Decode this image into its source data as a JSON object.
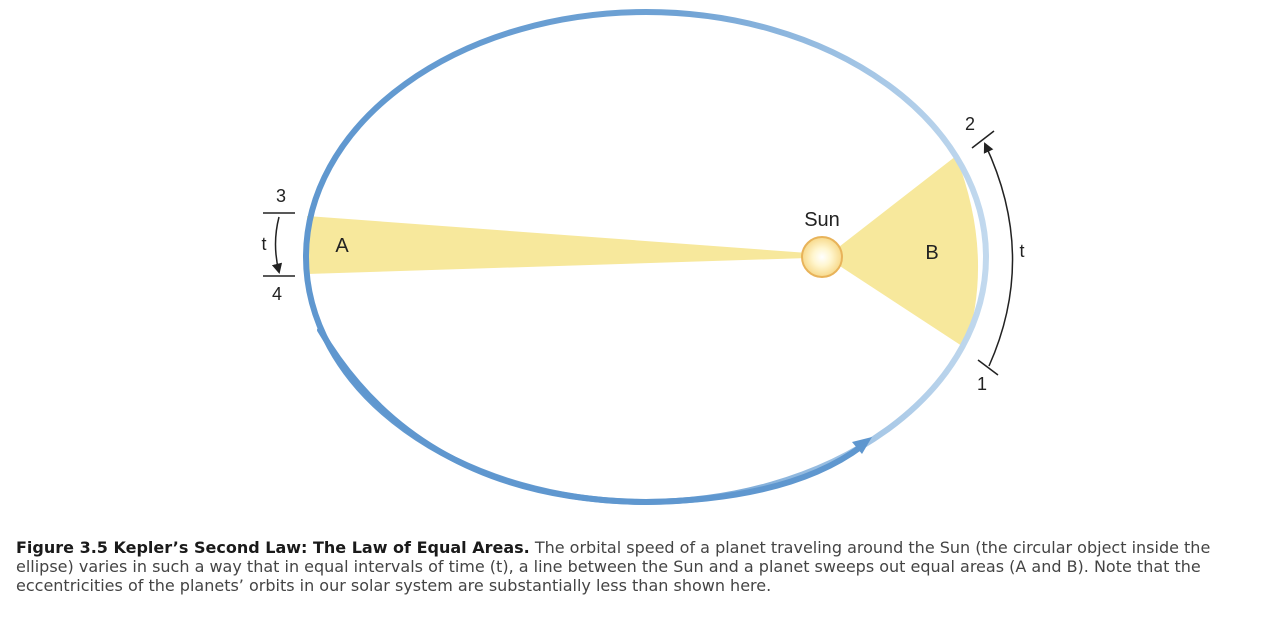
{
  "diagram": {
    "sun_label": "Sun",
    "area_a_label": "A",
    "area_b_label": "B",
    "point_labels": [
      "1",
      "2",
      "3",
      "4"
    ],
    "time_label": "t",
    "colors": {
      "orbit_dark": "#5f97cf",
      "orbit_light": "#bcd5ec",
      "swept_area": "#f7e89c",
      "sun_fill": "#fff3c2",
      "sun_stroke": "#e8b35a",
      "marker": "#222222"
    }
  },
  "caption": {
    "title": "Figure 3.5 Kepler’s Second Law: The Law of Equal Areas.",
    "text": "The orbital speed of a planet traveling around the Sun (the circular object inside the ellipse) varies in such a way that in equal intervals of time (t), a line between the Sun and a planet sweeps out equal areas (A and B). Note that the eccentricities of the planets’ orbits in our solar system are substantially less than shown here."
  }
}
